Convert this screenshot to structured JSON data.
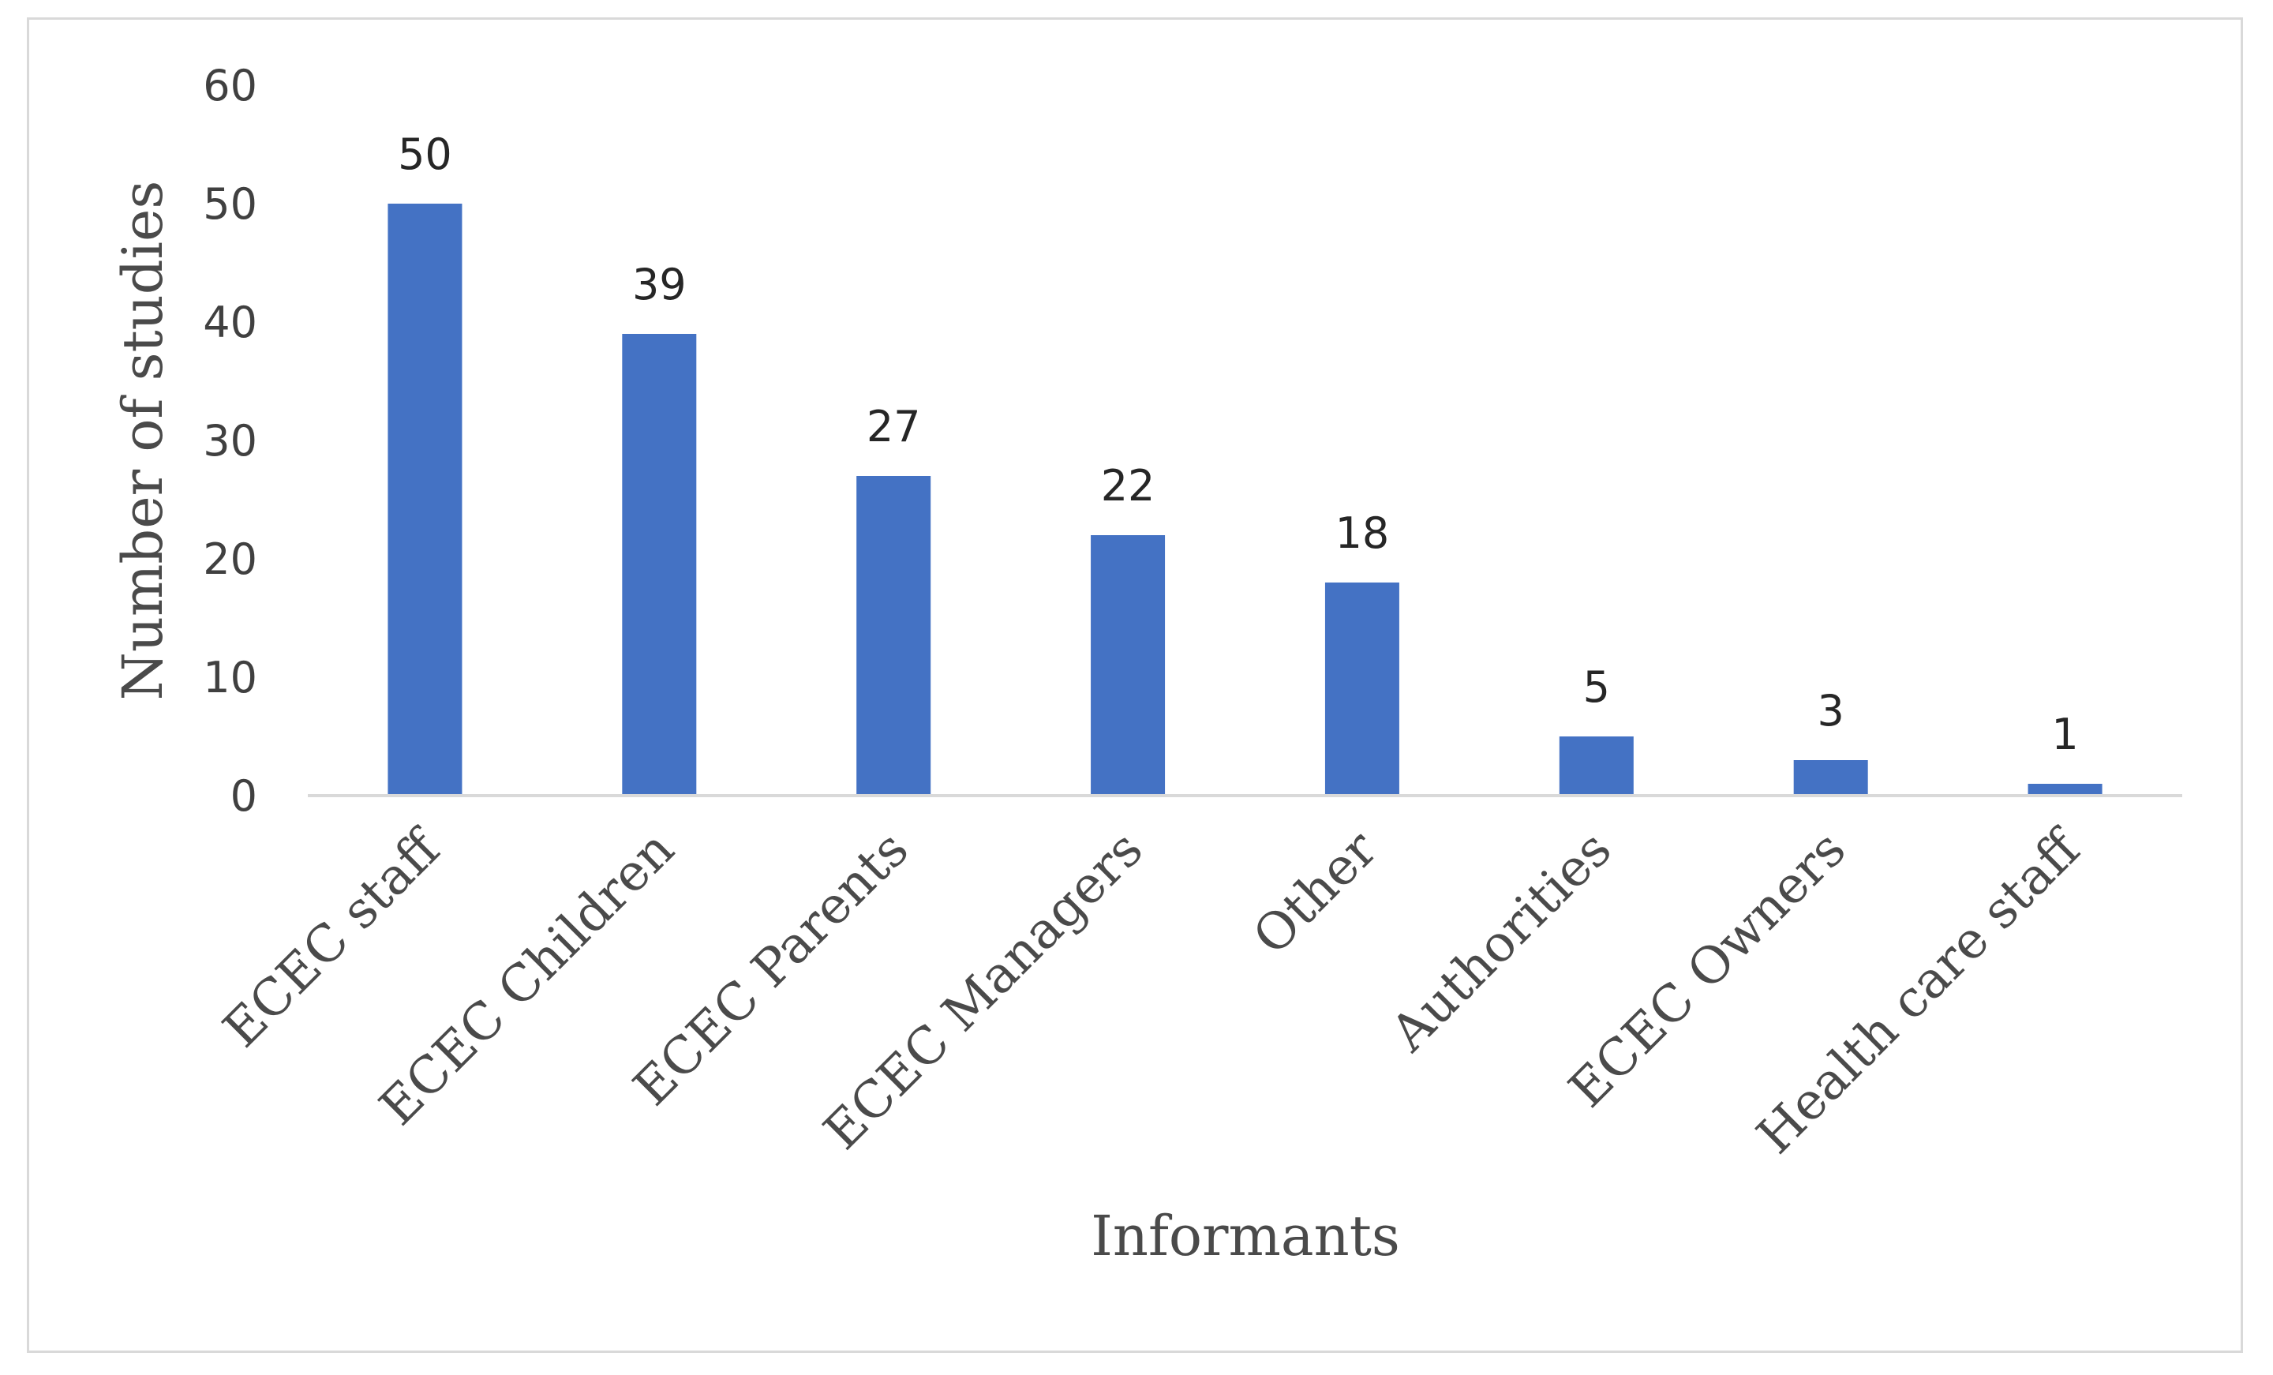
{
  "chart_data": {
    "type": "bar",
    "title": "",
    "xlabel": "Informants",
    "ylabel": "Number of studies",
    "categories": [
      "ECEC staff",
      "ECEC Children",
      "ECEC Parents",
      "ECEC Managers",
      "Other",
      "Authorities",
      "ECEC Owners",
      "Health care staff"
    ],
    "values": [
      50,
      39,
      27,
      22,
      18,
      5,
      3,
      1
    ],
    "data_labels": [
      "50",
      "39",
      "27",
      "22",
      "18",
      "5",
      "3",
      "1"
    ],
    "yticks": [
      "0",
      "10",
      "20",
      "30",
      "40",
      "50",
      "60"
    ],
    "ylim": [
      0,
      60
    ],
    "grid": false,
    "legend": "none",
    "bar_color": "#4472C4",
    "axis_color": "#d9d9d9"
  }
}
